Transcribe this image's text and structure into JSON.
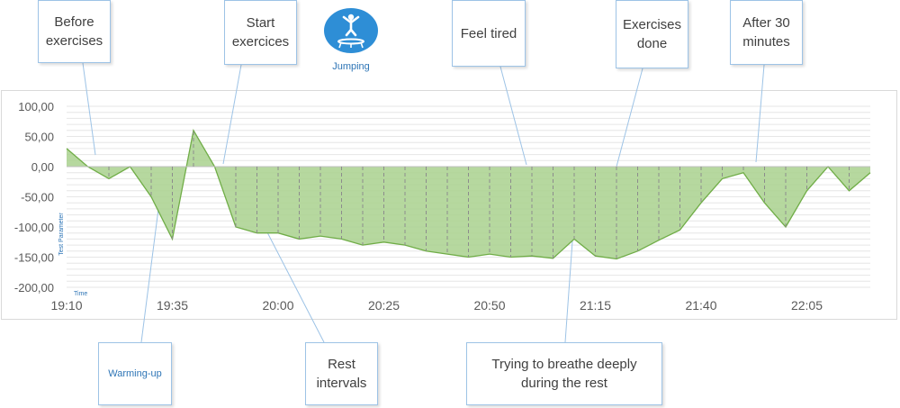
{
  "chart_data": {
    "type": "area",
    "title": "",
    "xlabel": "Time",
    "ylabel": "Test Parameter",
    "ylim": [
      -200,
      100
    ],
    "ytick_labels": [
      "100,00",
      "50,00",
      "0,00",
      "-50,00",
      "-100,00",
      "-150,00",
      "-200,00"
    ],
    "ytick_values": [
      100,
      50,
      0,
      -50,
      -100,
      -150,
      -200
    ],
    "xtick_labels": [
      "19:10",
      "19:35",
      "20:00",
      "20:25",
      "20:50",
      "21:15",
      "21:40",
      "22:05"
    ],
    "xtick_minutes": [
      0,
      25,
      50,
      75,
      100,
      125,
      150,
      175
    ],
    "x_minutes": [
      0,
      5,
      10,
      15,
      20,
      25,
      30,
      35,
      40,
      45,
      50,
      55,
      60,
      65,
      70,
      75,
      80,
      85,
      90,
      95,
      100,
      105,
      110,
      115,
      120,
      125,
      130,
      135,
      140,
      145,
      150,
      155,
      160,
      165,
      170,
      175,
      180,
      185,
      190
    ],
    "values": [
      30,
      0,
      -20,
      0,
      -50,
      -120,
      60,
      0,
      -100,
      -110,
      -110,
      -120,
      -115,
      -120,
      -130,
      -125,
      -130,
      -140,
      -145,
      -150,
      -145,
      -150,
      -148,
      -152,
      -120,
      -148,
      -153,
      -140,
      -122,
      -105,
      -60,
      -20,
      -10,
      -60,
      -100,
      -40,
      0,
      -40,
      -10
    ],
    "grid": true,
    "fill_color": "#a9d18e",
    "line_color": "#70ad47"
  },
  "badge": {
    "label": "Jumping",
    "icon": "trampoline-jumper-icon",
    "color": "#2e8ed6"
  },
  "annotations": [
    {
      "id": "before-exercises",
      "text": "Before\nexercises",
      "at_minute": 2.5
    },
    {
      "id": "warming-up",
      "text": "Warming-up",
      "at_minute": 22.5
    },
    {
      "id": "start-exercises",
      "text": "Start\nexercices",
      "at_minute": 37.5
    },
    {
      "id": "rest-intervals",
      "text": "Rest\nintervals",
      "at_minute": 49
    },
    {
      "id": "feel-tired",
      "text": "Feel tired",
      "at_minute": 108
    },
    {
      "id": "breathe-deeply",
      "text": "Trying to breathe deeply\nduring the rest",
      "at_minute": 120
    },
    {
      "id": "exercises-done",
      "text": "Exercises\ndone",
      "at_minute": 128
    },
    {
      "id": "after-30-minutes",
      "text": "After 30\nminutes",
      "at_minute": 163
    }
  ]
}
